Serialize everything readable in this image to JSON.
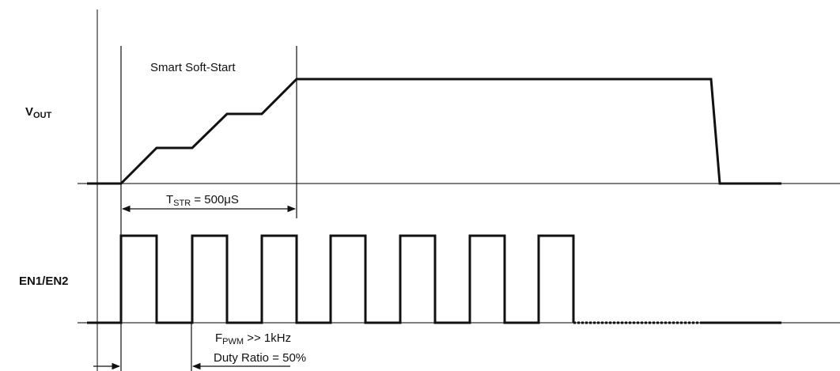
{
  "colors": {
    "ink": "#111111",
    "axis": "#333333",
    "background": "#ffffff"
  },
  "vout_panel": {
    "label_main": "V",
    "label_sub": "OUT",
    "soft_start_title": "Smart Soft-Start",
    "tstr": {
      "main": "T",
      "sub": "STR",
      "rest": " = 500μS"
    }
  },
  "en_panel": {
    "label": "EN1/EN2",
    "pulse_count": 7,
    "fpwm": {
      "main": "F",
      "sub": "PWM",
      "rest": " >> 1kHz"
    },
    "duty_ratio": "Duty Ratio = 50%"
  }
}
